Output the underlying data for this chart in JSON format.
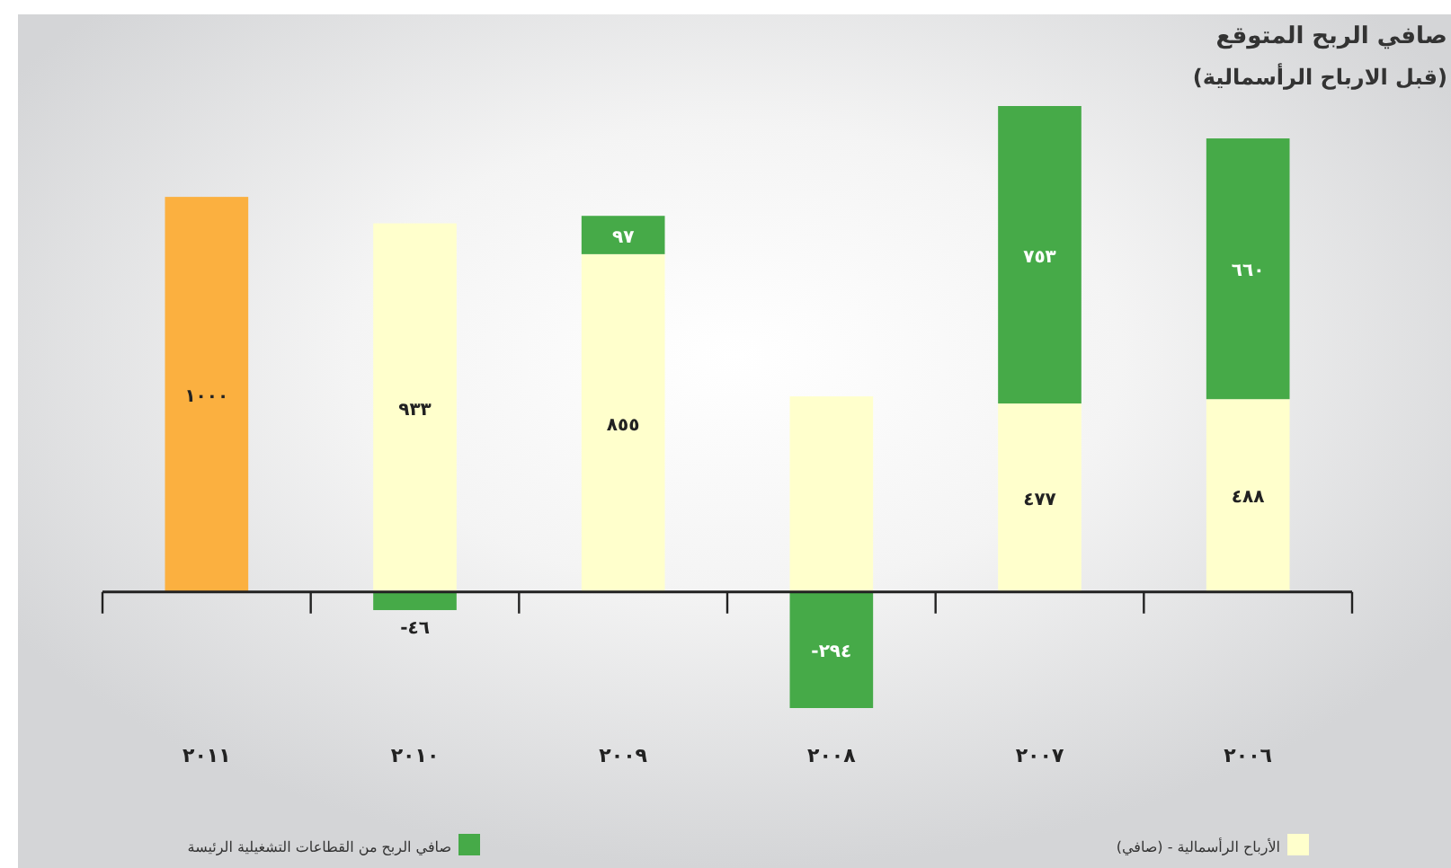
{
  "chart_data": {
    "type": "bar",
    "title": "صافي الربح المتوقع",
    "subtitle": "(قبل الارباح الرأسمالية)",
    "categories": [
      "٢٠١١",
      "٢٠١٠",
      "٢٠٠٩",
      "٢٠٠٨",
      "٢٠٠٧",
      "٢٠٠٦"
    ],
    "stacked": true,
    "legend": "bottom",
    "series": [
      {
        "color": "#fbb040",
        "values": [
          1000,
          null,
          null,
          null,
          null,
          null
        ],
        "value_labels": [
          "١٠٠٠",
          null,
          null,
          null,
          null,
          null
        ]
      },
      {
        "name": "الأرباح الرأسمالية - (صافي)",
        "color": "#ffffcc",
        "values": [
          null,
          933,
          855,
          495,
          477,
          488
        ],
        "value_labels": [
          null,
          "٩٣٣",
          "٨٥٥",
          null,
          "٤٧٧",
          "٤٨٨"
        ]
      },
      {
        "name": "صافي الربح من القطاعات التشغيلية الرئيسة",
        "color": "#46aa48",
        "values": [
          null,
          -46,
          97,
          -294,
          753,
          660
        ],
        "value_labels": [
          null,
          "-٤٦",
          "٩٧",
          "-٢٩٤",
          "٧٥٣",
          "٦٦٠"
        ]
      }
    ]
  }
}
